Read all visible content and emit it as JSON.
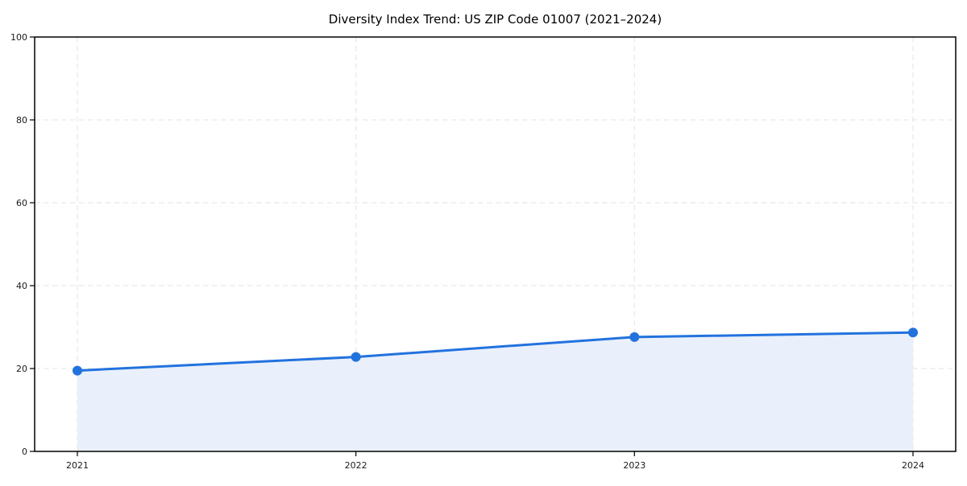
{
  "chart_data": {
    "type": "area",
    "title": "Diversity Index Trend: US ZIP Code 01007 (2021–2024)",
    "xlabel": "",
    "ylabel": "",
    "x": [
      2021,
      2022,
      2023,
      2024
    ],
    "xticks": [
      "2021",
      "2022",
      "2023",
      "2024"
    ],
    "series": [
      {
        "name": "Diversity Index",
        "values": [
          19.5,
          22.8,
          27.6,
          28.7
        ]
      }
    ],
    "ylim": [
      0,
      100
    ],
    "yticks": [
      0,
      20,
      40,
      60,
      80,
      100
    ],
    "grid": true,
    "grid_style": "dashed",
    "legend": false,
    "marker": "circle",
    "colors": {
      "line": "#2272de",
      "marker": "#2272de",
      "fill": "#e9f0fb",
      "grid": "#e3e3e3",
      "spine": "#000000",
      "tick_label": "#1a1a1a",
      "title": "#000000",
      "background": "#ffffff"
    }
  }
}
